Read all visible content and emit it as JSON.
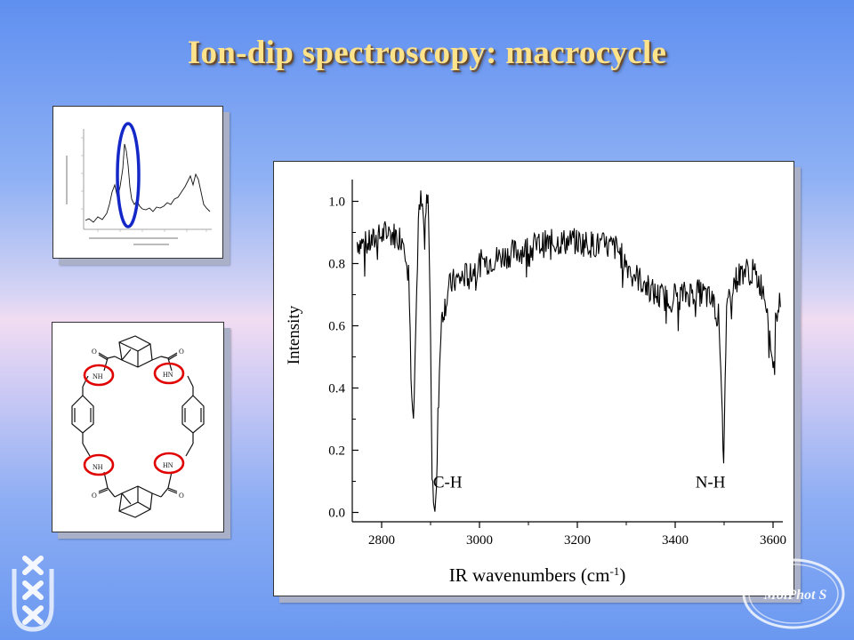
{
  "slide": {
    "title": "Ion-dip spectroscopy: macrocycle"
  },
  "molecule": {
    "nh_labels": [
      "NH",
      "HN",
      "NH",
      "HN"
    ],
    "o_label": "O"
  },
  "logos": {
    "uva": "uva-crosses-logo",
    "molphot": "MolPhot S"
  },
  "chart_data": {
    "type": "line",
    "xlabel_main": "IR wavenumbers (cm",
    "xlabel_sup": "-1",
    "xlabel_end": ")",
    "ylabel": "Intensity",
    "xlim": [
      2740,
      3620
    ],
    "ylim": [
      -0.03,
      1.07
    ],
    "xticks": [
      2800,
      3000,
      3200,
      3400,
      3600
    ],
    "xtick_labels": [
      "2800",
      "3000",
      "3200",
      "3400",
      "3600"
    ],
    "yticks": [
      0.0,
      0.2,
      0.4,
      0.6,
      0.8,
      1.0
    ],
    "ytick_labels": [
      "0.0",
      "0.2",
      "0.4",
      "0.6",
      "0.8",
      "1.0"
    ],
    "annotations": [
      {
        "text": "C-H",
        "x": 2935,
        "y": 0.08
      },
      {
        "text": "N-H",
        "x": 3472,
        "y": 0.08
      }
    ],
    "series": [
      {
        "x": [
          2750,
          2770,
          2790,
          2810,
          2830,
          2845,
          2855,
          2860,
          2865,
          2870,
          2875,
          2880,
          2885,
          2888,
          2892,
          2896,
          2900,
          2903,
          2906,
          2909,
          2912,
          2915,
          2918,
          2921,
          2924,
          2928,
          2932,
          2937,
          2945,
          2960,
          2980,
          3000,
          3040,
          3080,
          3120,
          3160,
          3200,
          3240,
          3280,
          3300,
          3320,
          3340,
          3360,
          3380,
          3400,
          3420,
          3440,
          3460,
          3480,
          3490,
          3495,
          3499,
          3502,
          3505,
          3510,
          3520,
          3540,
          3560,
          3580,
          3590,
          3595,
          3600,
          3605,
          3610,
          3615
        ],
        "y": [
          0.87,
          0.86,
          0.88,
          0.9,
          0.89,
          0.88,
          0.8,
          0.45,
          0.33,
          0.6,
          0.93,
          1.0,
          0.95,
          0.85,
          1.0,
          0.98,
          0.55,
          0.2,
          0.06,
          0.02,
          0.05,
          0.3,
          0.45,
          0.58,
          0.64,
          0.66,
          0.68,
          0.72,
          0.74,
          0.75,
          0.77,
          0.8,
          0.82,
          0.84,
          0.86,
          0.87,
          0.87,
          0.86,
          0.85,
          0.8,
          0.76,
          0.73,
          0.7,
          0.69,
          0.7,
          0.7,
          0.71,
          0.7,
          0.67,
          0.62,
          0.4,
          0.15,
          0.38,
          0.62,
          0.7,
          0.74,
          0.78,
          0.77,
          0.72,
          0.65,
          0.55,
          0.45,
          0.6,
          0.68,
          0.66
        ]
      }
    ]
  }
}
